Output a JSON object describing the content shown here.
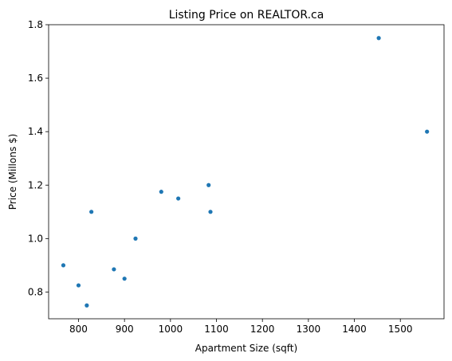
{
  "chart_data": {
    "type": "scatter",
    "title": "Listing Price on REALTOR.ca",
    "xlabel": "Apartment Size (sqft)",
    "ylabel": "Price (Millons $)",
    "xlim": [
      735,
      1595
    ],
    "ylim": [
      0.7,
      1.8
    ],
    "xticks": [
      800,
      900,
      1000,
      1100,
      1200,
      1300,
      1400,
      1500
    ],
    "yticks": [
      0.8,
      1.0,
      1.2,
      1.4,
      1.6,
      1.8
    ],
    "xtick_labels": [
      "800",
      "900",
      "1000",
      "1100",
      "1200",
      "1300",
      "1400",
      "1500"
    ],
    "ytick_labels": [
      "0.8",
      "1.0",
      "1.2",
      "1.4",
      "1.6",
      "1.8"
    ],
    "grid": false,
    "marker_color": "#1f77b4",
    "points": [
      {
        "x": 767,
        "y": 0.9
      },
      {
        "x": 800,
        "y": 0.825
      },
      {
        "x": 818,
        "y": 0.75
      },
      {
        "x": 828,
        "y": 1.1
      },
      {
        "x": 877,
        "y": 0.885
      },
      {
        "x": 900,
        "y": 0.85
      },
      {
        "x": 924,
        "y": 1.0
      },
      {
        "x": 980,
        "y": 1.175
      },
      {
        "x": 1017,
        "y": 1.15
      },
      {
        "x": 1083,
        "y": 1.2
      },
      {
        "x": 1087,
        "y": 1.1
      },
      {
        "x": 1453,
        "y": 1.75
      },
      {
        "x": 1558,
        "y": 1.4
      }
    ]
  }
}
